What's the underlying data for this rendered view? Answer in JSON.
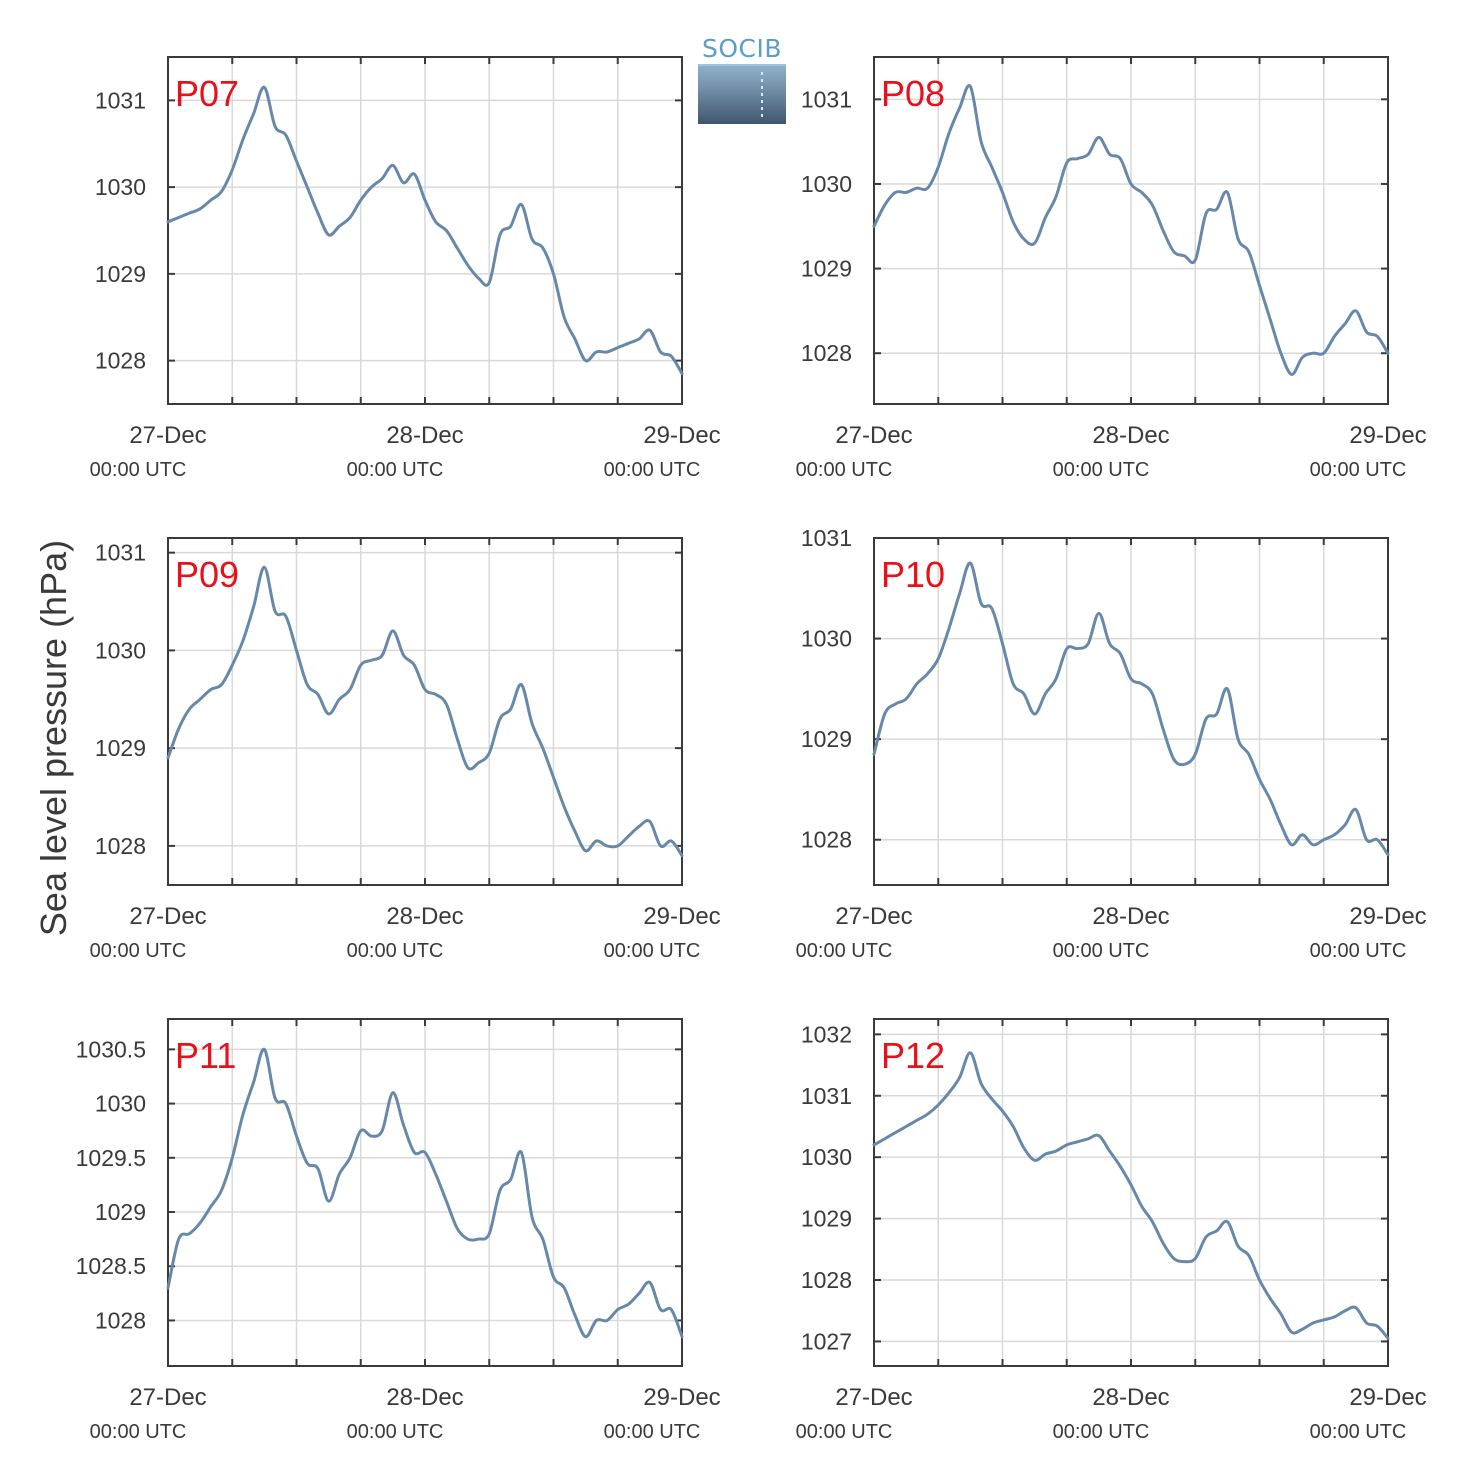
{
  "ylabel": "Sea level pressure (hPa)",
  "logo": {
    "text": "SOCIB"
  },
  "colors": {
    "line": "#6688aa",
    "panel_label": "#e8101b",
    "grid": "#d9d9d9",
    "axis": "#3a3a3a",
    "text": "#3a3a3a"
  },
  "chart_data": [
    {
      "type": "line",
      "label": "P07",
      "x_ticks": [
        {
          "date": "27-Dec",
          "time": "00:00 UTC"
        },
        {
          "date": "28-Dec",
          "time": "00:00 UTC"
        },
        {
          "date": "29-Dec",
          "time": "00:00 UTC"
        }
      ],
      "xlim": [
        "27-Dec 00:00",
        "29-Dec 00:00"
      ],
      "ylim": [
        1027.5,
        1031.5
      ],
      "yticks": [
        1028,
        1029,
        1030,
        1031
      ],
      "ytick_labels": [
        "1028",
        "1029",
        "1030",
        "1031"
      ],
      "grid": true,
      "series": [
        {
          "x_hours": [
            0,
            1,
            2,
            3,
            4,
            5,
            6,
            7,
            8,
            9,
            10,
            11,
            12,
            13,
            14,
            15,
            16,
            17,
            18,
            19,
            20,
            21,
            22,
            23,
            24,
            25,
            26,
            27,
            28,
            29,
            30,
            31,
            32,
            33,
            34,
            35,
            36,
            37,
            38,
            39,
            40,
            41,
            42,
            43,
            44,
            45,
            46,
            47,
            48
          ],
          "values": [
            1029.6,
            1029.65,
            1029.7,
            1029.75,
            1029.85,
            1029.95,
            1030.2,
            1030.55,
            1030.85,
            1031.15,
            1030.7,
            1030.6,
            1030.3,
            1030.0,
            1029.7,
            1029.45,
            1029.55,
            1029.65,
            1029.85,
            1030.0,
            1030.1,
            1030.25,
            1030.05,
            1030.15,
            1029.85,
            1029.6,
            1029.5,
            1029.3,
            1029.1,
            1028.95,
            1028.9,
            1029.45,
            1029.55,
            1029.8,
            1029.4,
            1029.3,
            1029.0,
            1028.5,
            1028.25,
            1028.0,
            1028.1,
            1028.1,
            1028.15,
            1028.2,
            1028.25,
            1028.35,
            1028.1,
            1028.05,
            1027.85
          ]
        }
      ]
    },
    {
      "type": "line",
      "label": "P08",
      "x_ticks": [
        {
          "date": "27-Dec",
          "time": "00:00 UTC"
        },
        {
          "date": "28-Dec",
          "time": "00:00 UTC"
        },
        {
          "date": "29-Dec",
          "time": "00:00 UTC"
        }
      ],
      "xlim": [
        "27-Dec 00:00",
        "29-Dec 00:00"
      ],
      "ylim": [
        1027.4,
        1031.5
      ],
      "yticks": [
        1028,
        1029,
        1030,
        1031
      ],
      "ytick_labels": [
        "1028",
        "1029",
        "1030",
        "1031"
      ],
      "grid": true,
      "series": [
        {
          "x_hours": [
            0,
            1,
            2,
            3,
            4,
            5,
            6,
            7,
            8,
            9,
            10,
            11,
            12,
            13,
            14,
            15,
            16,
            17,
            18,
            19,
            20,
            21,
            22,
            23,
            24,
            25,
            26,
            27,
            28,
            29,
            30,
            31,
            32,
            33,
            34,
            35,
            36,
            37,
            38,
            39,
            40,
            41,
            42,
            43,
            44,
            45,
            46,
            47,
            48
          ],
          "values": [
            1029.5,
            1029.75,
            1029.9,
            1029.9,
            1029.95,
            1029.95,
            1030.2,
            1030.6,
            1030.9,
            1031.15,
            1030.5,
            1030.2,
            1029.9,
            1029.55,
            1029.35,
            1029.3,
            1029.6,
            1029.85,
            1030.25,
            1030.3,
            1030.35,
            1030.55,
            1030.35,
            1030.3,
            1030.0,
            1029.9,
            1029.75,
            1029.45,
            1029.2,
            1029.15,
            1029.1,
            1029.65,
            1029.7,
            1029.9,
            1029.35,
            1029.2,
            1028.8,
            1028.4,
            1028.0,
            1027.75,
            1027.95,
            1028.0,
            1028.0,
            1028.2,
            1028.35,
            1028.5,
            1028.25,
            1028.2,
            1028.0
          ]
        }
      ]
    },
    {
      "type": "line",
      "label": "P09",
      "x_ticks": [
        {
          "date": "27-Dec",
          "time": "00:00 UTC"
        },
        {
          "date": "28-Dec",
          "time": "00:00 UTC"
        },
        {
          "date": "29-Dec",
          "time": "00:00 UTC"
        }
      ],
      "xlim": [
        "27-Dec 00:00",
        "29-Dec 00:00"
      ],
      "ylim": [
        1027.6,
        1031.15
      ],
      "yticks": [
        1028,
        1029,
        1030,
        1031
      ],
      "ytick_labels": [
        "1028",
        "1029",
        "1030",
        "1031"
      ],
      "grid": true,
      "series": [
        {
          "x_hours": [
            0,
            1,
            2,
            3,
            4,
            5,
            6,
            7,
            8,
            9,
            10,
            11,
            12,
            13,
            14,
            15,
            16,
            17,
            18,
            19,
            20,
            21,
            22,
            23,
            24,
            25,
            26,
            27,
            28,
            29,
            30,
            31,
            32,
            33,
            34,
            35,
            36,
            37,
            38,
            39,
            40,
            41,
            42,
            43,
            44,
            45,
            46,
            47,
            48
          ],
          "values": [
            1028.9,
            1029.2,
            1029.4,
            1029.5,
            1029.6,
            1029.65,
            1029.85,
            1030.1,
            1030.45,
            1030.85,
            1030.4,
            1030.35,
            1030.0,
            1029.65,
            1029.55,
            1029.35,
            1029.5,
            1029.6,
            1029.85,
            1029.9,
            1029.95,
            1030.2,
            1029.95,
            1029.85,
            1029.6,
            1029.55,
            1029.45,
            1029.1,
            1028.8,
            1028.85,
            1028.95,
            1029.3,
            1029.4,
            1029.65,
            1029.25,
            1029.0,
            1028.7,
            1028.4,
            1028.15,
            1027.95,
            1028.05,
            1028.0,
            1028.0,
            1028.1,
            1028.2,
            1028.25,
            1028.0,
            1028.05,
            1027.9
          ]
        }
      ]
    },
    {
      "type": "line",
      "label": "P10",
      "x_ticks": [
        {
          "date": "27-Dec",
          "time": "00:00 UTC"
        },
        {
          "date": "28-Dec",
          "time": "00:00 UTC"
        },
        {
          "date": "29-Dec",
          "time": "00:00 UTC"
        }
      ],
      "xlim": [
        "27-Dec 00:00",
        "29-Dec 00:00"
      ],
      "ylim": [
        1027.55,
        1031.0
      ],
      "yticks": [
        1028,
        1029,
        1030,
        1031
      ],
      "ytick_labels": [
        "1028",
        "1029",
        "1030",
        "1031"
      ],
      "grid": true,
      "series": [
        {
          "x_hours": [
            0,
            1,
            2,
            3,
            4,
            5,
            6,
            7,
            8,
            9,
            10,
            11,
            12,
            13,
            14,
            15,
            16,
            17,
            18,
            19,
            20,
            21,
            22,
            23,
            24,
            25,
            26,
            27,
            28,
            29,
            30,
            31,
            32,
            33,
            34,
            35,
            36,
            37,
            38,
            39,
            40,
            41,
            42,
            43,
            44,
            45,
            46,
            47,
            48
          ],
          "values": [
            1028.85,
            1029.25,
            1029.35,
            1029.4,
            1029.55,
            1029.65,
            1029.8,
            1030.1,
            1030.45,
            1030.75,
            1030.35,
            1030.3,
            1029.95,
            1029.55,
            1029.45,
            1029.25,
            1029.45,
            1029.6,
            1029.9,
            1029.9,
            1029.95,
            1030.25,
            1029.95,
            1029.85,
            1029.6,
            1029.55,
            1029.45,
            1029.1,
            1028.8,
            1028.75,
            1028.85,
            1029.2,
            1029.25,
            1029.5,
            1029.0,
            1028.85,
            1028.6,
            1028.4,
            1028.15,
            1027.95,
            1028.05,
            1027.95,
            1028.0,
            1028.05,
            1028.15,
            1028.3,
            1028.0,
            1028.0,
            1027.85
          ]
        }
      ]
    },
    {
      "type": "line",
      "label": "P11",
      "x_ticks": [
        {
          "date": "27-Dec",
          "time": "00:00 UTC"
        },
        {
          "date": "28-Dec",
          "time": "00:00 UTC"
        },
        {
          "date": "29-Dec",
          "time": "00:00 UTC"
        }
      ],
      "xlim": [
        "27-Dec 00:00",
        "29-Dec 00:00"
      ],
      "ylim": [
        1027.58,
        1030.78
      ],
      "yticks": [
        1028,
        1028.5,
        1029,
        1029.5,
        1030,
        1030.5
      ],
      "ytick_labels": [
        "1028",
        "1028.5",
        "1029",
        "1029.5",
        "1030",
        "1030.5"
      ],
      "grid": true,
      "series": [
        {
          "x_hours": [
            0,
            1,
            2,
            3,
            4,
            5,
            6,
            7,
            8,
            9,
            10,
            11,
            12,
            13,
            14,
            15,
            16,
            17,
            18,
            19,
            20,
            21,
            22,
            23,
            24,
            25,
            26,
            27,
            28,
            29,
            30,
            31,
            32,
            33,
            34,
            35,
            36,
            37,
            38,
            39,
            40,
            41,
            42,
            43,
            44,
            45,
            46,
            47,
            48
          ],
          "values": [
            1028.3,
            1028.75,
            1028.8,
            1028.9,
            1029.05,
            1029.2,
            1029.5,
            1029.9,
            1030.2,
            1030.5,
            1030.05,
            1030.0,
            1029.7,
            1029.45,
            1029.4,
            1029.1,
            1029.35,
            1029.5,
            1029.75,
            1029.7,
            1029.75,
            1030.1,
            1029.8,
            1029.55,
            1029.55,
            1029.35,
            1029.1,
            1028.85,
            1028.75,
            1028.75,
            1028.8,
            1029.2,
            1029.3,
            1029.55,
            1028.95,
            1028.75,
            1028.4,
            1028.3,
            1028.05,
            1027.85,
            1028.0,
            1028.0,
            1028.1,
            1028.15,
            1028.25,
            1028.35,
            1028.1,
            1028.1,
            1027.85
          ]
        }
      ]
    },
    {
      "type": "line",
      "label": "P12",
      "x_ticks": [
        {
          "date": "27-Dec",
          "time": "00:00 UTC"
        },
        {
          "date": "28-Dec",
          "time": "00:00 UTC"
        },
        {
          "date": "29-Dec",
          "time": "00:00 UTC"
        }
      ],
      "xlim": [
        "27-Dec 00:00",
        "29-Dec 00:00"
      ],
      "ylim": [
        1026.6,
        1032.25
      ],
      "yticks": [
        1027,
        1028,
        1029,
        1030,
        1031,
        1032
      ],
      "ytick_labels": [
        "1027",
        "1028",
        "1029",
        "1030",
        "1031",
        "1032"
      ],
      "grid": true,
      "series": [
        {
          "x_hours": [
            0,
            1,
            2,
            3,
            4,
            5,
            6,
            7,
            8,
            9,
            10,
            11,
            12,
            13,
            14,
            15,
            16,
            17,
            18,
            19,
            20,
            21,
            22,
            23,
            24,
            25,
            26,
            27,
            28,
            29,
            30,
            31,
            32,
            33,
            34,
            35,
            36,
            37,
            38,
            39,
            40,
            41,
            42,
            43,
            44,
            45,
            46,
            47,
            48
          ],
          "values": [
            1030.2,
            1030.3,
            1030.4,
            1030.5,
            1030.6,
            1030.7,
            1030.85,
            1031.05,
            1031.3,
            1031.7,
            1031.2,
            1030.95,
            1030.75,
            1030.5,
            1030.15,
            1029.95,
            1030.05,
            1030.1,
            1030.2,
            1030.25,
            1030.3,
            1030.35,
            1030.1,
            1029.85,
            1029.55,
            1029.2,
            1028.95,
            1028.6,
            1028.35,
            1028.3,
            1028.35,
            1028.7,
            1028.8,
            1028.95,
            1028.55,
            1028.4,
            1028.0,
            1027.7,
            1027.45,
            1027.15,
            1027.2,
            1027.3,
            1027.35,
            1027.4,
            1027.5,
            1027.55,
            1027.3,
            1027.25,
            1027.05
          ]
        }
      ]
    }
  ]
}
